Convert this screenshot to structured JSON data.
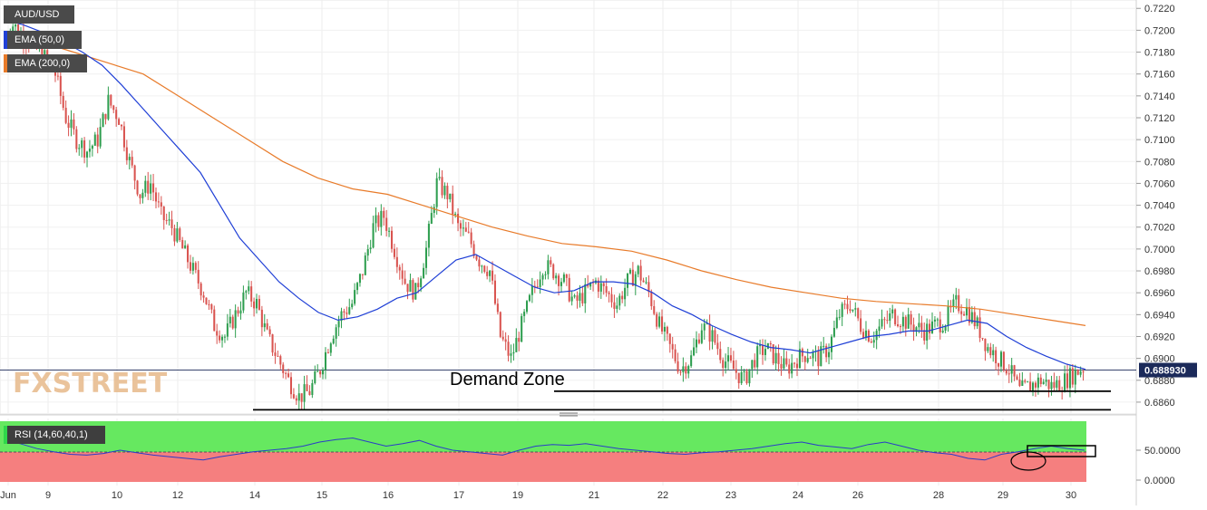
{
  "instrument": "AUD/USD",
  "indicators": {
    "ema50": {
      "label": "EMA (50,0)",
      "color": "#1f3fd6"
    },
    "ema200": {
      "label": "EMA (200,0)",
      "color": "#e87b2a"
    },
    "rsi": {
      "label": "RSI (14,60,40,1)",
      "color": "#2a3cc9"
    }
  },
  "watermark": "FXSTREET",
  "colors": {
    "bull": "#2e9e4f",
    "bear": "#d9534f",
    "rsi_upper_zone": "#66e860",
    "rsi_lower_zone": "#f57f7f",
    "current_price_bg": "#1b2a5a"
  },
  "chart_data": [
    {
      "type": "candlestick",
      "title": "AUD/USD",
      "y_ticks": [
        "0.7220",
        "0.7200",
        "0.7180",
        "0.7160",
        "0.7140",
        "0.7120",
        "0.7100",
        "0.7080",
        "0.7060",
        "0.7040",
        "0.7020",
        "0.7000",
        "0.6980",
        "0.6960",
        "0.6940",
        "0.6920",
        "0.6900",
        "0.6880",
        "0.6860"
      ],
      "ylim": [
        0.685,
        0.7226
      ],
      "x_ticks": [
        "Jun",
        "9",
        "10",
        "12",
        "14",
        "15",
        "16",
        "17",
        "19",
        "21",
        "22",
        "23",
        "24",
        "26",
        "28",
        "29",
        "30"
      ],
      "current_price": 0.68893,
      "current_price_label": "0.688930",
      "price_path": [
        0.719,
        0.7205,
        0.7195,
        0.7185,
        0.7175,
        0.716,
        0.712,
        0.71,
        0.709,
        0.71,
        0.7135,
        0.712,
        0.708,
        0.705,
        0.706,
        0.703,
        0.702,
        0.7,
        0.698,
        0.696,
        0.693,
        0.692,
        0.694,
        0.696,
        0.695,
        0.692,
        0.69,
        0.688,
        0.6865,
        0.687,
        0.689,
        0.692,
        0.694,
        0.695,
        0.698,
        0.702,
        0.703,
        0.7,
        0.697,
        0.696,
        0.7,
        0.706,
        0.705,
        0.702,
        0.701,
        0.699,
        0.698,
        0.692,
        0.69,
        0.693,
        0.696,
        0.6985,
        0.698,
        0.697,
        0.695,
        0.696,
        0.697,
        0.696,
        0.695,
        0.697,
        0.698,
        0.696,
        0.693,
        0.691,
        0.689,
        0.69,
        0.693,
        0.692,
        0.69,
        0.689,
        0.688,
        0.69,
        0.691,
        0.69,
        0.689,
        0.69,
        0.6905,
        0.69,
        0.691,
        0.694,
        0.695,
        0.693,
        0.692,
        0.693,
        0.694,
        0.6935,
        0.693,
        0.6925,
        0.693,
        0.6935,
        0.695,
        0.6945,
        0.693,
        0.691,
        0.69,
        0.689,
        0.687,
        0.6875,
        0.688,
        0.6875,
        0.6878,
        0.6885,
        0.6892
      ],
      "ema50_path": [
        0.721,
        0.7205,
        0.7198,
        0.719,
        0.718,
        0.7168,
        0.715,
        0.713,
        0.711,
        0.709,
        0.707,
        0.704,
        0.701,
        0.699,
        0.697,
        0.6955,
        0.6942,
        0.6935,
        0.6938,
        0.6945,
        0.6955,
        0.696,
        0.6975,
        0.699,
        0.6995,
        0.6985,
        0.6975,
        0.6965,
        0.696,
        0.6962,
        0.697,
        0.697,
        0.6968,
        0.696,
        0.6948,
        0.694,
        0.693,
        0.6922,
        0.6915,
        0.691,
        0.6908,
        0.6905,
        0.691,
        0.6915,
        0.692,
        0.6922,
        0.6925,
        0.6925,
        0.693,
        0.6935,
        0.6932,
        0.692,
        0.691,
        0.6902,
        0.6895,
        0.689
      ],
      "ema200_path": [
        0.7195,
        0.719,
        0.718,
        0.717,
        0.716,
        0.714,
        0.712,
        0.71,
        0.708,
        0.7065,
        0.7055,
        0.705,
        0.704,
        0.703,
        0.702,
        0.7012,
        0.7005,
        0.7002,
        0.6998,
        0.699,
        0.698,
        0.6972,
        0.6965,
        0.696,
        0.6955,
        0.6952,
        0.695,
        0.6948,
        0.6945,
        0.694,
        0.6935,
        0.693
      ],
      "annotations": [
        {
          "text": "Demand Zone",
          "lines": [
            0.687,
            0.6853
          ]
        }
      ]
    },
    {
      "type": "line",
      "title": "RSI (14,60,40,1)",
      "y_ticks": [
        "50.0000",
        "0.0000"
      ],
      "ylim": [
        0,
        100
      ],
      "levels": {
        "upper": 60,
        "lower": 40
      },
      "values": [
        62,
        58,
        52,
        48,
        45,
        44,
        46,
        50,
        47,
        44,
        42,
        40,
        38,
        42,
        45,
        48,
        50,
        52,
        55,
        60,
        63,
        65,
        60,
        55,
        58,
        62,
        55,
        50,
        48,
        46,
        44,
        50,
        55,
        57,
        56,
        58,
        55,
        52,
        50,
        48,
        46,
        45,
        47,
        48,
        50,
        52,
        55,
        58,
        60,
        56,
        54,
        52,
        57,
        60,
        55,
        50,
        47,
        45,
        40,
        38,
        45,
        48,
        52,
        55,
        52,
        50
      ]
    }
  ]
}
